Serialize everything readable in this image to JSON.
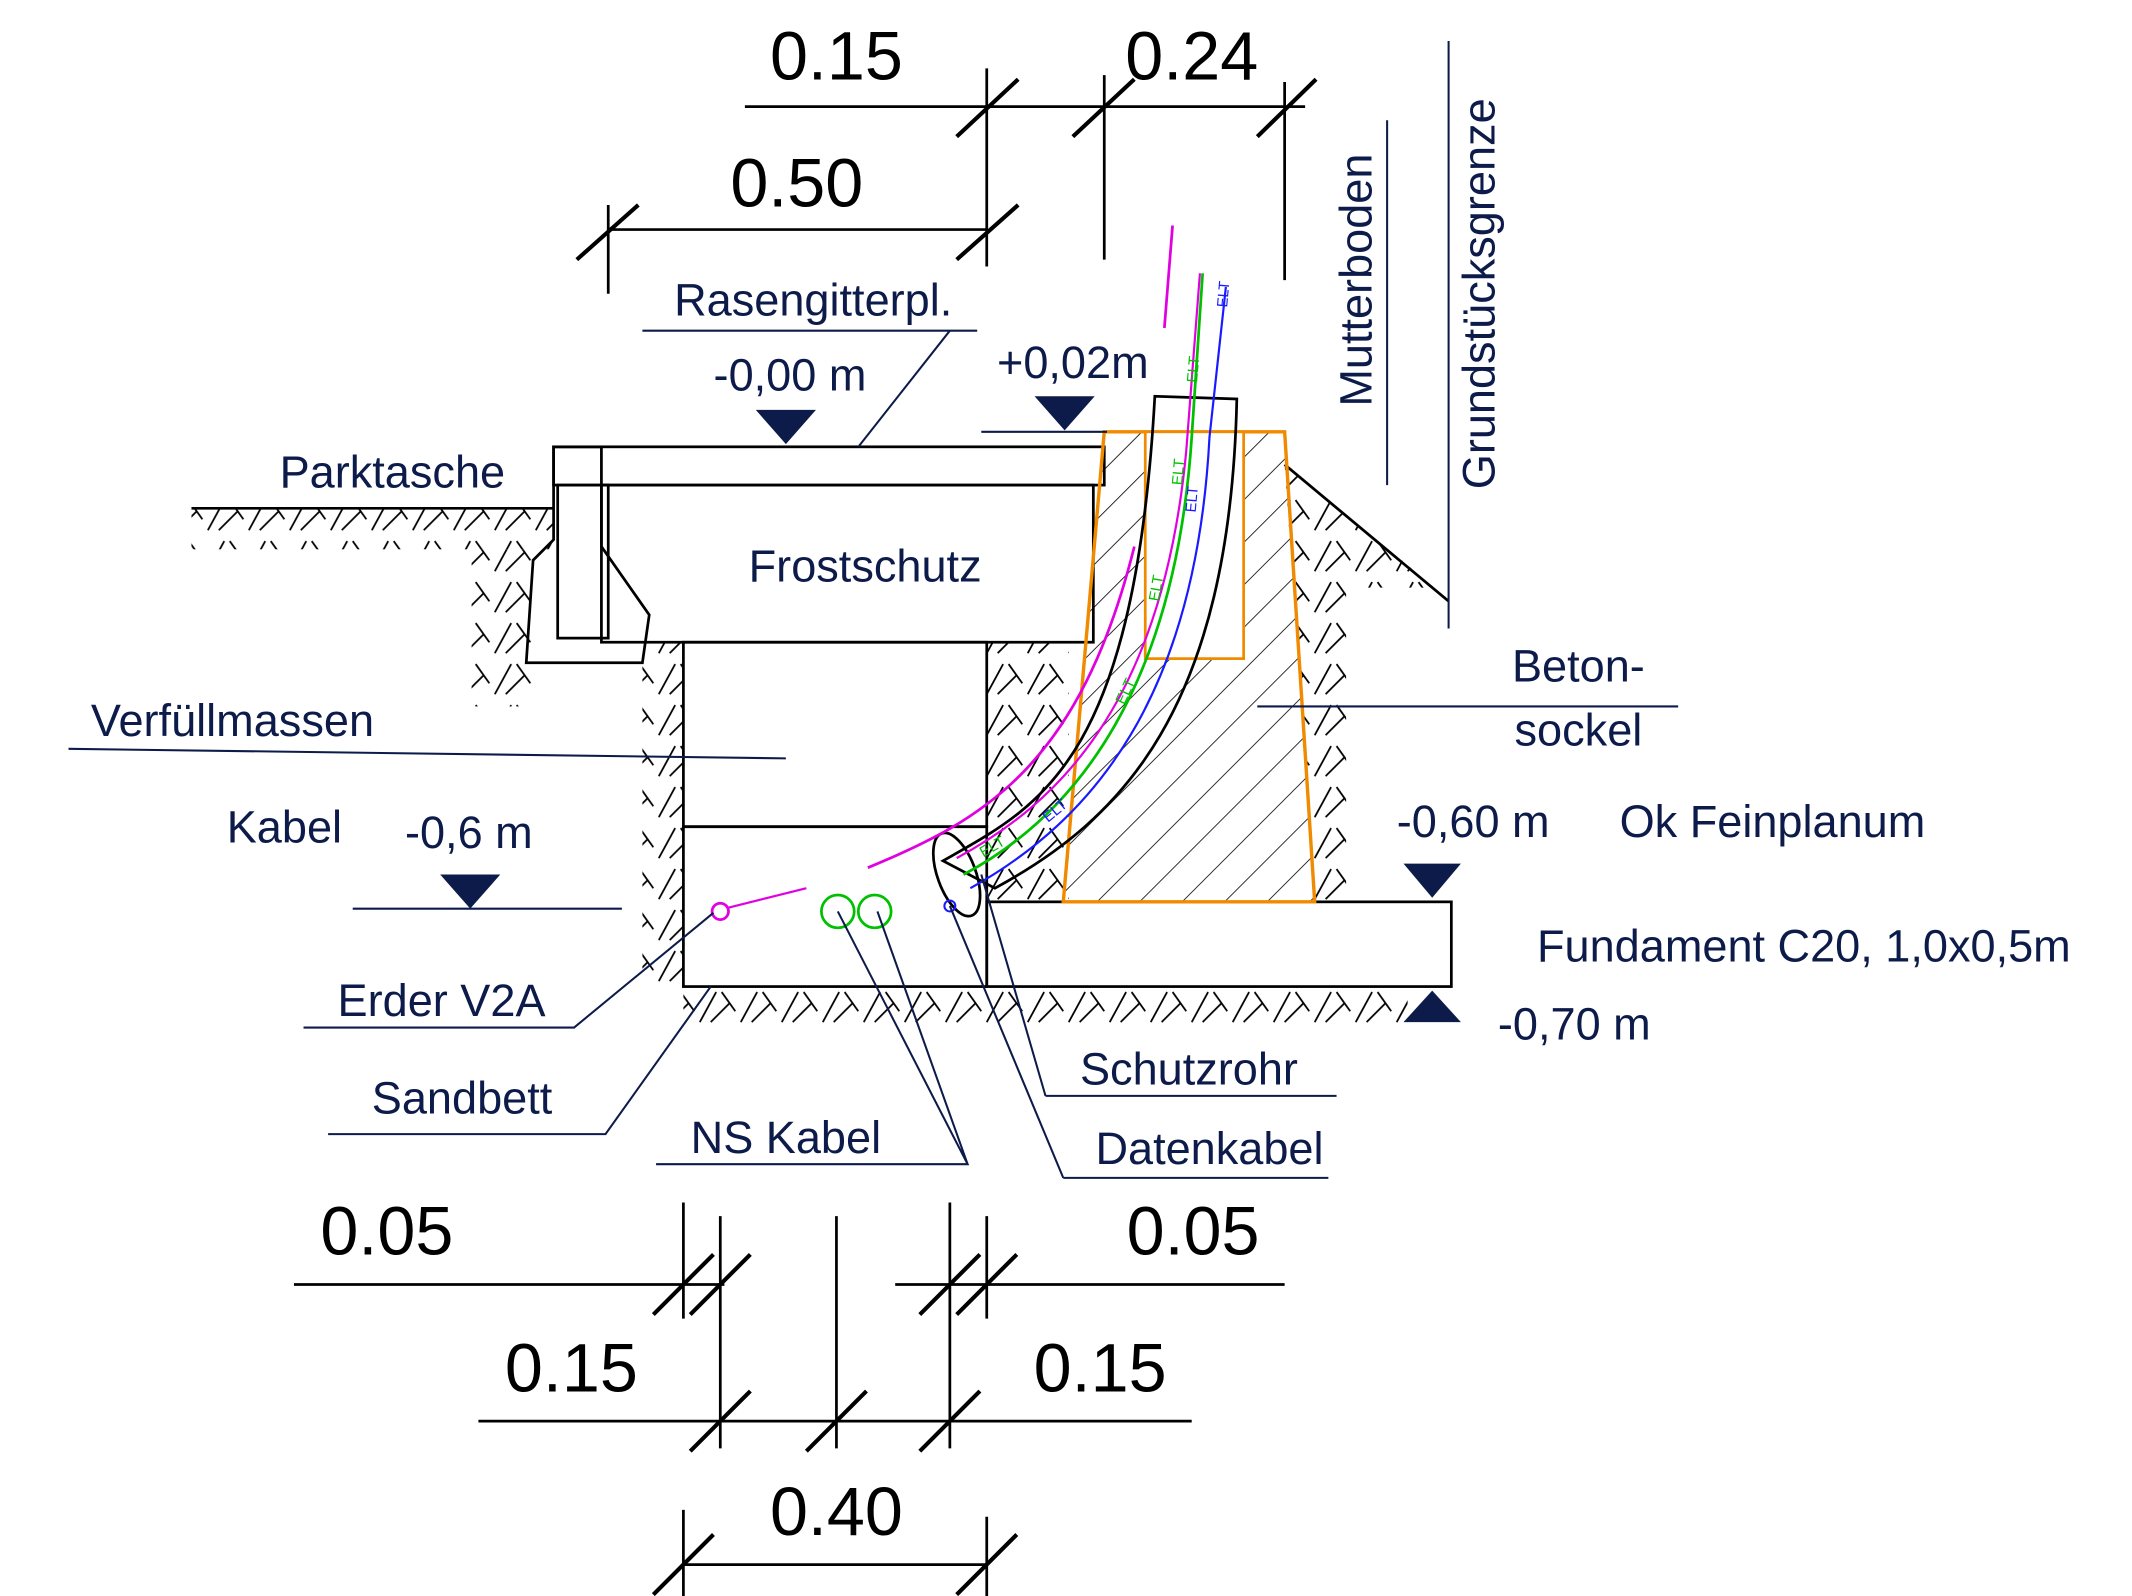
{
  "dimensions_top": [
    "0.15",
    "0.24",
    "0.50"
  ],
  "dimensions_bottom": [
    "0.05",
    "0.05",
    "0.15",
    "0.15",
    "0.40"
  ],
  "levels": {
    "surface": "-0,00 m",
    "socket_top": "+0,02m",
    "fine_grade": "-0,60 m",
    "foundation_bottom": "-0,70 m",
    "cable": "-0,6 m"
  },
  "labels": {
    "paving": "Rasengitterpl.",
    "parking": "Parktasche",
    "frost": "Frostschutz",
    "backfill": "Verfüllmassen",
    "cable": "Kabel",
    "earth": "Erder V2A",
    "sandbed": "Sandbett",
    "ns_cable": "NS Kabel",
    "conduit": "Schutzrohr",
    "data_cable": "Datenkabel",
    "socket_1": "Beton-",
    "socket_2": "sockel",
    "fine_grade": "Ok Feinplanum",
    "foundation": "Fundament C20, 1,0x0,5m",
    "topsoil": "Mutterboden",
    "boundary": "Grundstücksgrenze"
  },
  "cable_tag": "ELT"
}
